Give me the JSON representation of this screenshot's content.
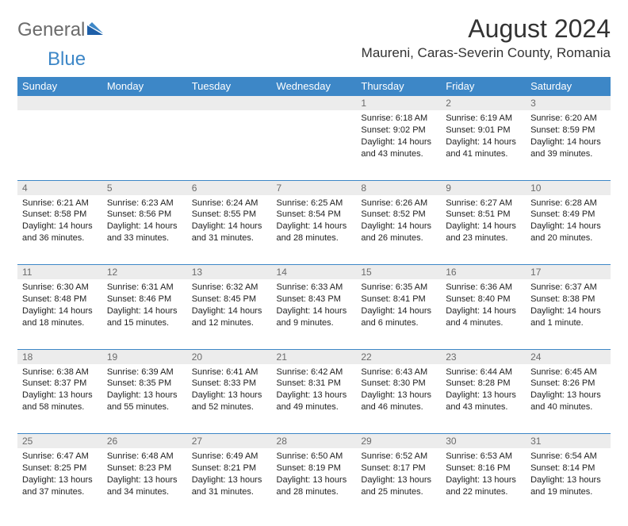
{
  "logo": {
    "text1": "General",
    "text2": "Blue"
  },
  "title": "August 2024",
  "location": "Maureni, Caras-Severin County, Romania",
  "weekdays": [
    "Sunday",
    "Monday",
    "Tuesday",
    "Wednesday",
    "Thursday",
    "Friday",
    "Saturday"
  ],
  "colors": {
    "header_bg": "#3d87c7",
    "header_text": "#ffffff",
    "daynum_bg": "#ececec",
    "daynum_text": "#6b6b6b",
    "cell_border": "#3d87c7",
    "logo_gray": "#6b6b6b",
    "logo_blue": "#3d87c7"
  },
  "weeks": [
    [
      {
        "num": "",
        "sunrise": "",
        "sunset": "",
        "daylight": ""
      },
      {
        "num": "",
        "sunrise": "",
        "sunset": "",
        "daylight": ""
      },
      {
        "num": "",
        "sunrise": "",
        "sunset": "",
        "daylight": ""
      },
      {
        "num": "",
        "sunrise": "",
        "sunset": "",
        "daylight": ""
      },
      {
        "num": "1",
        "sunrise": "Sunrise: 6:18 AM",
        "sunset": "Sunset: 9:02 PM",
        "daylight": "Daylight: 14 hours and 43 minutes."
      },
      {
        "num": "2",
        "sunrise": "Sunrise: 6:19 AM",
        "sunset": "Sunset: 9:01 PM",
        "daylight": "Daylight: 14 hours and 41 minutes."
      },
      {
        "num": "3",
        "sunrise": "Sunrise: 6:20 AM",
        "sunset": "Sunset: 8:59 PM",
        "daylight": "Daylight: 14 hours and 39 minutes."
      }
    ],
    [
      {
        "num": "4",
        "sunrise": "Sunrise: 6:21 AM",
        "sunset": "Sunset: 8:58 PM",
        "daylight": "Daylight: 14 hours and 36 minutes."
      },
      {
        "num": "5",
        "sunrise": "Sunrise: 6:23 AM",
        "sunset": "Sunset: 8:56 PM",
        "daylight": "Daylight: 14 hours and 33 minutes."
      },
      {
        "num": "6",
        "sunrise": "Sunrise: 6:24 AM",
        "sunset": "Sunset: 8:55 PM",
        "daylight": "Daylight: 14 hours and 31 minutes."
      },
      {
        "num": "7",
        "sunrise": "Sunrise: 6:25 AM",
        "sunset": "Sunset: 8:54 PM",
        "daylight": "Daylight: 14 hours and 28 minutes."
      },
      {
        "num": "8",
        "sunrise": "Sunrise: 6:26 AM",
        "sunset": "Sunset: 8:52 PM",
        "daylight": "Daylight: 14 hours and 26 minutes."
      },
      {
        "num": "9",
        "sunrise": "Sunrise: 6:27 AM",
        "sunset": "Sunset: 8:51 PM",
        "daylight": "Daylight: 14 hours and 23 minutes."
      },
      {
        "num": "10",
        "sunrise": "Sunrise: 6:28 AM",
        "sunset": "Sunset: 8:49 PM",
        "daylight": "Daylight: 14 hours and 20 minutes."
      }
    ],
    [
      {
        "num": "11",
        "sunrise": "Sunrise: 6:30 AM",
        "sunset": "Sunset: 8:48 PM",
        "daylight": "Daylight: 14 hours and 18 minutes."
      },
      {
        "num": "12",
        "sunrise": "Sunrise: 6:31 AM",
        "sunset": "Sunset: 8:46 PM",
        "daylight": "Daylight: 14 hours and 15 minutes."
      },
      {
        "num": "13",
        "sunrise": "Sunrise: 6:32 AM",
        "sunset": "Sunset: 8:45 PM",
        "daylight": "Daylight: 14 hours and 12 minutes."
      },
      {
        "num": "14",
        "sunrise": "Sunrise: 6:33 AM",
        "sunset": "Sunset: 8:43 PM",
        "daylight": "Daylight: 14 hours and 9 minutes."
      },
      {
        "num": "15",
        "sunrise": "Sunrise: 6:35 AM",
        "sunset": "Sunset: 8:41 PM",
        "daylight": "Daylight: 14 hours and 6 minutes."
      },
      {
        "num": "16",
        "sunrise": "Sunrise: 6:36 AM",
        "sunset": "Sunset: 8:40 PM",
        "daylight": "Daylight: 14 hours and 4 minutes."
      },
      {
        "num": "17",
        "sunrise": "Sunrise: 6:37 AM",
        "sunset": "Sunset: 8:38 PM",
        "daylight": "Daylight: 14 hours and 1 minute."
      }
    ],
    [
      {
        "num": "18",
        "sunrise": "Sunrise: 6:38 AM",
        "sunset": "Sunset: 8:37 PM",
        "daylight": "Daylight: 13 hours and 58 minutes."
      },
      {
        "num": "19",
        "sunrise": "Sunrise: 6:39 AM",
        "sunset": "Sunset: 8:35 PM",
        "daylight": "Daylight: 13 hours and 55 minutes."
      },
      {
        "num": "20",
        "sunrise": "Sunrise: 6:41 AM",
        "sunset": "Sunset: 8:33 PM",
        "daylight": "Daylight: 13 hours and 52 minutes."
      },
      {
        "num": "21",
        "sunrise": "Sunrise: 6:42 AM",
        "sunset": "Sunset: 8:31 PM",
        "daylight": "Daylight: 13 hours and 49 minutes."
      },
      {
        "num": "22",
        "sunrise": "Sunrise: 6:43 AM",
        "sunset": "Sunset: 8:30 PM",
        "daylight": "Daylight: 13 hours and 46 minutes."
      },
      {
        "num": "23",
        "sunrise": "Sunrise: 6:44 AM",
        "sunset": "Sunset: 8:28 PM",
        "daylight": "Daylight: 13 hours and 43 minutes."
      },
      {
        "num": "24",
        "sunrise": "Sunrise: 6:45 AM",
        "sunset": "Sunset: 8:26 PM",
        "daylight": "Daylight: 13 hours and 40 minutes."
      }
    ],
    [
      {
        "num": "25",
        "sunrise": "Sunrise: 6:47 AM",
        "sunset": "Sunset: 8:25 PM",
        "daylight": "Daylight: 13 hours and 37 minutes."
      },
      {
        "num": "26",
        "sunrise": "Sunrise: 6:48 AM",
        "sunset": "Sunset: 8:23 PM",
        "daylight": "Daylight: 13 hours and 34 minutes."
      },
      {
        "num": "27",
        "sunrise": "Sunrise: 6:49 AM",
        "sunset": "Sunset: 8:21 PM",
        "daylight": "Daylight: 13 hours and 31 minutes."
      },
      {
        "num": "28",
        "sunrise": "Sunrise: 6:50 AM",
        "sunset": "Sunset: 8:19 PM",
        "daylight": "Daylight: 13 hours and 28 minutes."
      },
      {
        "num": "29",
        "sunrise": "Sunrise: 6:52 AM",
        "sunset": "Sunset: 8:17 PM",
        "daylight": "Daylight: 13 hours and 25 minutes."
      },
      {
        "num": "30",
        "sunrise": "Sunrise: 6:53 AM",
        "sunset": "Sunset: 8:16 PM",
        "daylight": "Daylight: 13 hours and 22 minutes."
      },
      {
        "num": "31",
        "sunrise": "Sunrise: 6:54 AM",
        "sunset": "Sunset: 8:14 PM",
        "daylight": "Daylight: 13 hours and 19 minutes."
      }
    ]
  ]
}
